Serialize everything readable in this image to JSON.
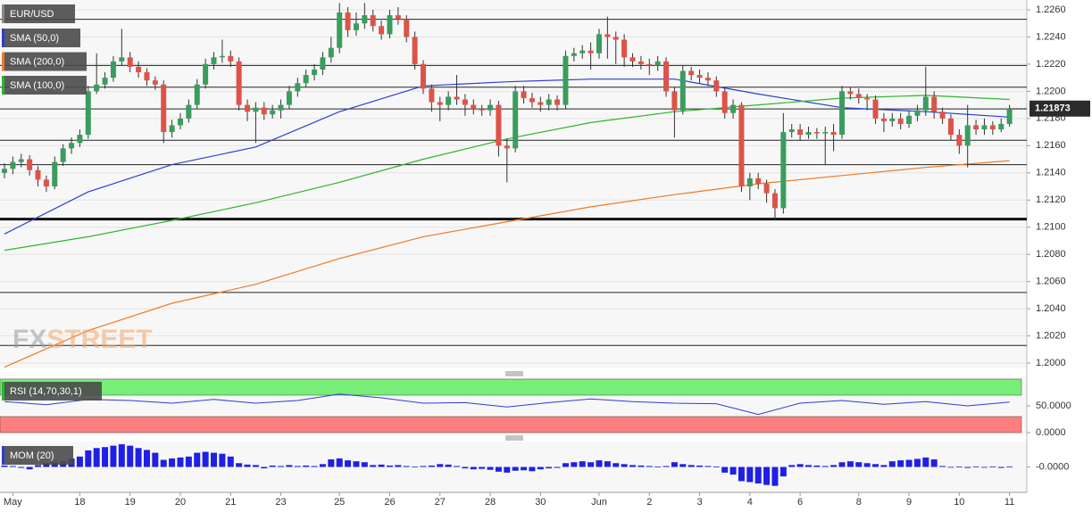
{
  "chart_data": [
    {
      "type": "candlestick",
      "symbol": "EUR/USD",
      "watermark": [
        "FX",
        "STREET"
      ],
      "last_value_label": "1.21873",
      "up_color": "#3a9d5d",
      "down_color": "#de5348",
      "wick_color": "#333333",
      "grid": true,
      "categories": [
        null,
        "May",
        null,
        null,
        null,
        null,
        null,
        null,
        null,
        "18",
        null,
        null,
        null,
        null,
        null,
        "19",
        null,
        null,
        null,
        null,
        null,
        "20",
        null,
        null,
        null,
        null,
        null,
        "21",
        null,
        null,
        null,
        null,
        null,
        "23",
        null,
        null,
        null,
        null,
        null,
        null,
        "25",
        null,
        null,
        null,
        null,
        null,
        "26",
        null,
        null,
        null,
        null,
        null,
        "27",
        null,
        null,
        null,
        null,
        null,
        "28",
        null,
        null,
        null,
        null,
        null,
        "30",
        null,
        null,
        null,
        null,
        null,
        null,
        "Jun",
        null,
        null,
        null,
        null,
        null,
        "2",
        null,
        null,
        null,
        null,
        null,
        "3",
        null,
        null,
        null,
        null,
        null,
        "4",
        null,
        null,
        null,
        null,
        null,
        "6",
        null,
        null,
        null,
        null,
        null,
        null,
        "8",
        null,
        null,
        null,
        null,
        null,
        "9",
        null,
        null,
        null,
        null,
        null,
        "10",
        null,
        null,
        null,
        null,
        null,
        "11"
      ],
      "open": [
        1.214,
        1.2143,
        1.2148,
        1.215,
        1.2142,
        1.2135,
        1.213,
        1.2148,
        1.2158,
        1.2162,
        1.2168,
        1.22,
        1.2205,
        1.221,
        1.2222,
        1.2225,
        1.2218,
        1.2214,
        1.2208,
        1.2205,
        1.217,
        1.2175,
        1.218,
        1.219,
        1.2205,
        1.222,
        1.2225,
        1.2226,
        1.2222,
        1.219,
        1.2185,
        1.2188,
        1.2183,
        1.2186,
        1.219,
        1.22,
        1.2206,
        1.2212,
        1.2216,
        1.2225,
        1.2232,
        1.2258,
        1.2245,
        1.225,
        1.2256,
        1.2248,
        1.2242,
        1.2256,
        1.2253,
        1.224,
        1.222,
        1.2202,
        1.2192,
        1.219,
        1.2196,
        1.2194,
        1.219,
        1.2187,
        1.2186,
        1.219,
        1.216,
        1.2158,
        1.22,
        1.2195,
        1.2192,
        1.219,
        1.2194,
        1.219,
        1.2226,
        1.2228,
        1.223,
        1.2228,
        1.2242,
        1.224,
        1.2238,
        1.2225,
        1.2222,
        1.222,
        1.2219,
        1.2222,
        1.22,
        1.2186,
        1.2215,
        1.2212,
        1.221,
        1.2208,
        1.22,
        1.2184,
        1.219,
        1.213,
        1.2136,
        1.2132,
        1.2125,
        1.2114,
        1.217,
        1.2172,
        1.2168,
        1.217,
        1.2169,
        1.217,
        1.2168,
        1.22,
        1.2198,
        1.2195,
        1.2194,
        1.218,
        1.2178,
        1.218,
        1.2176,
        1.2182,
        1.2186,
        1.2196,
        1.2185,
        1.218,
        1.2168,
        1.216,
        1.2175,
        1.2172,
        1.2175,
        1.2172,
        1.2176
      ],
      "high": [
        1.2147,
        1.2152,
        1.2154,
        1.2153,
        1.2145,
        1.2138,
        1.2152,
        1.2161,
        1.2166,
        1.2172,
        1.2204,
        1.2228,
        1.2214,
        1.2226,
        1.2246,
        1.2229,
        1.2222,
        1.2217,
        1.2211,
        1.2208,
        1.2179,
        1.2184,
        1.2194,
        1.2209,
        1.2224,
        1.2229,
        1.2238,
        1.223,
        1.2225,
        1.2194,
        1.2192,
        1.2192,
        1.219,
        1.2194,
        1.2204,
        1.221,
        1.2216,
        1.222,
        1.2229,
        1.224,
        1.2265,
        1.2262,
        1.2258,
        1.2265,
        1.226,
        1.2252,
        1.226,
        1.2262,
        1.2256,
        1.2244,
        1.2223,
        1.2205,
        1.2196,
        1.22,
        1.2212,
        1.2198,
        1.2194,
        1.219,
        1.2194,
        1.2193,
        1.2165,
        1.2204,
        1.2204,
        1.2199,
        1.2196,
        1.2198,
        1.2197,
        1.223,
        1.2232,
        1.2234,
        1.2236,
        1.2246,
        1.2255,
        1.2244,
        1.2242,
        1.2228,
        1.2226,
        1.2224,
        1.2226,
        1.2225,
        1.2203,
        1.2219,
        1.2218,
        1.2216,
        1.2214,
        1.2211,
        1.2203,
        1.2194,
        1.2192,
        1.214,
        1.214,
        1.2135,
        1.2128,
        1.2184,
        1.2176,
        1.2176,
        1.2174,
        1.2173,
        1.2174,
        1.2176,
        1.2204,
        1.2203,
        1.2202,
        1.2198,
        1.2197,
        1.2184,
        1.2184,
        1.2184,
        1.2186,
        1.219,
        1.2218,
        1.22,
        1.2188,
        1.2183,
        1.2172,
        1.219,
        1.2179,
        1.218,
        1.2178,
        1.218,
        1.219
      ],
      "low": [
        1.2136,
        1.2139,
        1.2144,
        1.2138,
        1.213,
        1.2126,
        1.2128,
        1.2145,
        1.2154,
        1.2159,
        1.2165,
        1.2198,
        1.2202,
        1.2207,
        1.2219,
        1.2214,
        1.221,
        1.2204,
        1.2201,
        1.2162,
        1.2166,
        1.2172,
        1.2177,
        1.2187,
        1.2202,
        1.2216,
        1.2221,
        1.2218,
        1.2186,
        1.2178,
        1.2162,
        1.2179,
        1.218,
        1.218,
        1.2187,
        1.2196,
        1.2203,
        1.2208,
        1.2212,
        1.2221,
        1.2228,
        1.224,
        1.2241,
        1.2246,
        1.2244,
        1.2238,
        1.2239,
        1.2249,
        1.2236,
        1.2216,
        1.2198,
        1.2185,
        1.2178,
        1.2186,
        1.219,
        1.2182,
        1.2183,
        1.2182,
        1.2182,
        1.2152,
        1.2133,
        1.2155,
        1.2191,
        1.2188,
        1.2185,
        1.2186,
        1.2186,
        1.2187,
        1.2222,
        1.2224,
        1.2216,
        1.2224,
        1.2224,
        1.222,
        1.2218,
        1.2218,
        1.2216,
        1.2212,
        1.2215,
        1.2196,
        1.2166,
        1.2183,
        1.2208,
        1.2206,
        1.2204,
        1.2196,
        1.218,
        1.218,
        1.2126,
        1.212,
        1.2128,
        1.2118,
        1.2105,
        1.211,
        1.2166,
        1.2164,
        1.2165,
        1.2165,
        1.2146,
        1.2156,
        1.2165,
        1.2194,
        1.2191,
        1.2186,
        1.2176,
        1.217,
        1.2174,
        1.2172,
        1.2173,
        1.2178,
        1.2182,
        1.218,
        1.2176,
        1.2164,
        1.2154,
        1.2144,
        1.2168,
        1.2168,
        1.2168,
        1.217,
        1.2174
      ],
      "close": [
        1.2143,
        1.2148,
        1.215,
        1.2142,
        1.2135,
        1.213,
        1.2148,
        1.2158,
        1.2162,
        1.2168,
        1.22,
        1.2205,
        1.221,
        1.2222,
        1.2225,
        1.2218,
        1.2214,
        1.2208,
        1.2205,
        1.217,
        1.2175,
        1.218,
        1.219,
        1.2205,
        1.222,
        1.2225,
        1.2226,
        1.2222,
        1.219,
        1.2185,
        1.2188,
        1.2183,
        1.2186,
        1.219,
        1.22,
        1.2206,
        1.2212,
        1.2216,
        1.2225,
        1.2232,
        1.2258,
        1.2245,
        1.225,
        1.2256,
        1.2248,
        1.2242,
        1.2256,
        1.2253,
        1.224,
        1.222,
        1.2202,
        1.2192,
        1.219,
        1.2196,
        1.2194,
        1.219,
        1.2187,
        1.2186,
        1.219,
        1.216,
        1.2158,
        1.22,
        1.2195,
        1.2192,
        1.219,
        1.2194,
        1.219,
        1.2226,
        1.2228,
        1.223,
        1.2228,
        1.2242,
        1.224,
        1.2238,
        1.2225,
        1.2222,
        1.222,
        1.2219,
        1.2222,
        1.22,
        1.2186,
        1.2215,
        1.2212,
        1.221,
        1.2208,
        1.22,
        1.2184,
        1.219,
        1.213,
        1.2136,
        1.2132,
        1.2125,
        1.2114,
        1.217,
        1.2172,
        1.2168,
        1.217,
        1.2169,
        1.217,
        1.2168,
        1.22,
        1.2198,
        1.2195,
        1.2194,
        1.218,
        1.2178,
        1.218,
        1.2176,
        1.2182,
        1.2186,
        1.2196,
        1.2185,
        1.218,
        1.2168,
        1.216,
        1.2175,
        1.2172,
        1.2175,
        1.2172,
        1.2176,
        1.21873
      ],
      "series": [
        {
          "name": "SMA (50,0)",
          "color": "#2a3fd1",
          "x": [
            0,
            10,
            20,
            30,
            40,
            50,
            60,
            70,
            80,
            90,
            100,
            110,
            120
          ],
          "values": [
            1.2095,
            1.2126,
            1.2146,
            1.2159,
            1.2185,
            1.2204,
            1.2207,
            1.2209,
            1.2209,
            1.2198,
            1.2188,
            1.2185,
            1.2181
          ]
        },
        {
          "name": "SMA (200,0)",
          "color": "#ee7a24",
          "x": [
            0,
            10,
            20,
            30,
            40,
            50,
            60,
            70,
            80,
            90,
            100,
            110,
            120
          ],
          "values": [
            1.1997,
            1.2024,
            1.2044,
            1.2058,
            1.2077,
            1.2093,
            1.2104,
            1.2115,
            1.2124,
            1.2132,
            1.2138,
            1.2144,
            1.2149
          ]
        },
        {
          "name": "SMA (100,0)",
          "color": "#2fb52f",
          "x": [
            0,
            10,
            20,
            30,
            40,
            50,
            60,
            70,
            80,
            90,
            100,
            110,
            120
          ],
          "values": [
            1.2083,
            1.2093,
            1.2105,
            1.2118,
            1.2133,
            1.215,
            1.2165,
            1.2177,
            1.2185,
            1.219,
            1.2195,
            1.2197,
            1.2194
          ]
        }
      ],
      "levels": [
        1.2253,
        1.2219,
        1.2203,
        1.2187,
        1.2164,
        1.2146,
        1.2052,
        1.2013
      ],
      "major_level": 1.2106,
      "ylim": [
        1.19961,
        1.22672
      ],
      "yticks": [
        {
          "value": 1.226,
          "label": "1.2260"
        },
        {
          "value": 1.224,
          "label": "1.2240"
        },
        {
          "value": 1.222,
          "label": "1.2220"
        },
        {
          "value": 1.22,
          "label": "1.2200"
        },
        {
          "value": 1.218,
          "label": "1.2180"
        },
        {
          "value": 1.216,
          "label": "1.2160"
        },
        {
          "value": 1.214,
          "label": "1.2140"
        },
        {
          "value": 1.212,
          "label": "1.2120"
        },
        {
          "value": 1.21,
          "label": "1.2100"
        },
        {
          "value": 1.208,
          "label": "1.2080"
        },
        {
          "value": 1.206,
          "label": "1.2060"
        },
        {
          "value": 1.204,
          "label": "1.2040"
        },
        {
          "value": 1.202,
          "label": "1.2020"
        },
        {
          "value": 1.2,
          "label": "1.2000"
        }
      ]
    },
    {
      "type": "line",
      "title": "RSI (14,70,30,1)",
      "color": "#2a3fd1",
      "upper_band": 70,
      "lower_band": 30,
      "upper_band_color": "#77ee77",
      "lower_band_color": "#ff7f7f",
      "x": [
        0,
        5,
        10,
        15,
        20,
        25,
        30,
        35,
        40,
        45,
        50,
        55,
        60,
        65,
        70,
        75,
        80,
        85,
        90,
        95,
        100,
        105,
        110,
        115,
        120
      ],
      "values": [
        58,
        52,
        62,
        60,
        55,
        62,
        55,
        60,
        72,
        65,
        55,
        56,
        48,
        56,
        63,
        58,
        55,
        54,
        34,
        55,
        60,
        53,
        58,
        50,
        57
      ],
      "ylim": [
        0,
        100
      ],
      "yticks": [
        {
          "value": 50,
          "label": "50.0000"
        },
        {
          "value": 0,
          "label": "0.0000"
        }
      ]
    },
    {
      "type": "bar",
      "title": "MOM (20)",
      "color": "#1f1fe6",
      "values": [
        0.0003,
        0.0002,
        -0.0002,
        -0.0005,
        0.0004,
        0.0008,
        0.001,
        0.0012,
        0.0018,
        0.0022,
        0.0035,
        0.004,
        0.0042,
        0.0045,
        0.0048,
        0.0045,
        0.004,
        0.0036,
        0.003,
        0.0015,
        0.0018,
        0.002,
        0.0022,
        0.003,
        0.0032,
        0.003,
        0.0028,
        0.0022,
        0.0008,
        0.0005,
        0.0004,
        -0.0003,
        0.0003,
        0.0002,
        0.0004,
        0.0002,
        0.0003,
        0.0002,
        0.0006,
        0.0016,
        0.0018,
        0.0014,
        0.0012,
        0.001,
        0.0004,
        0.0005,
        0.0003,
        0.0004,
        0.0002,
        0.0001,
        0.0002,
        0.0003,
        0.0006,
        0.0005,
        0.0002,
        -0.0003,
        -0.0005,
        -0.0004,
        -0.0006,
        -0.001,
        -0.0012,
        -0.0008,
        -0.0007,
        -0.0009,
        -0.0005,
        -0.0003,
        -0.0002,
        0.0008,
        0.001,
        0.0012,
        0.001,
        0.0014,
        0.0012,
        0.0008,
        0.0006,
        0.0004,
        0.0003,
        0.0002,
        0.0001,
        0.0002,
        0.001,
        0.0006,
        0.0004,
        0.0003,
        0.0002,
        0.0001,
        -0.0012,
        -0.0016,
        -0.003,
        -0.0032,
        -0.0035,
        -0.0038,
        -0.004,
        -0.002,
        0.0004,
        0.0006,
        0.0004,
        0.0003,
        0.0002,
        0.0004,
        0.001,
        0.0012,
        0.001,
        0.0008,
        0.0006,
        0.0004,
        0.0012,
        0.0014,
        0.0015,
        0.0017,
        0.002,
        0.0016,
        0.0002,
        -0.0001,
        0.0001,
        -0.0002,
        0.0001,
        -0.0001,
        0.0001,
        -0.0002,
        0.0001
      ],
      "ylim": [
        -0.005,
        0.005
      ],
      "yticks": [
        {
          "value": 0,
          "label": "-0.0000"
        }
      ]
    }
  ]
}
